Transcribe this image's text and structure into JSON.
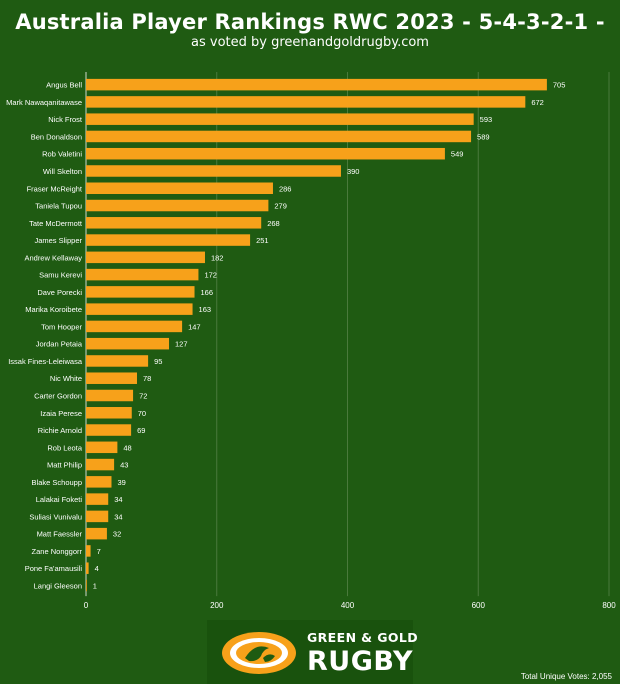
{
  "header": {
    "title": "Australia Player Rankings RWC 2023 - 5-4-3-2-1 -",
    "subtitle": "as voted by greenandgoldrugby.com"
  },
  "colors": {
    "background": "#1f5b12",
    "bar": "#f7a11a",
    "grid": "#4a7a3c",
    "text": "#ffffff",
    "logo_gold": "#f7a11a"
  },
  "chart_data": {
    "type": "bar",
    "orientation": "horizontal",
    "categories": [
      "Angus Bell",
      "Mark Nawaqanitawase",
      "Nick Frost",
      "Ben Donaldson",
      "Rob Valetini",
      "Will Skelton",
      "Fraser McReight",
      "Taniela Tupou",
      "Tate McDermott",
      "James Slipper",
      "Andrew Kellaway",
      "Samu Kerevi",
      "Dave Porecki",
      "Marika Koroibete",
      "Tom Hooper",
      "Jordan Petaia",
      "Issak Fines-Leleiwasa",
      "Nic White",
      "Carter Gordon",
      "Izaia Perese",
      "Richie Arnold",
      "Rob Leota",
      "Matt Philip",
      "Blake Schoupp",
      "Lalakai Foketi",
      "Suliasi Vunivalu",
      "Matt Faessler",
      "Zane Nonggorr",
      "Pone Fa'amausili",
      "Langi Gleeson"
    ],
    "values": [
      705,
      672,
      593,
      589,
      549,
      390,
      286,
      279,
      268,
      251,
      182,
      172,
      166,
      163,
      147,
      127,
      95,
      78,
      72,
      70,
      69,
      48,
      43,
      39,
      34,
      34,
      32,
      7,
      4,
      1
    ],
    "xlim": [
      0,
      800
    ],
    "xticks": [
      "0",
      "200",
      "400",
      "600",
      "800"
    ],
    "grid": true,
    "data_labels": true
  },
  "logo": {
    "line1": "GREEN & GOLD",
    "line2": "RUGBY"
  },
  "footer": {
    "total_votes": "Total Unique Votes: 2,055"
  }
}
